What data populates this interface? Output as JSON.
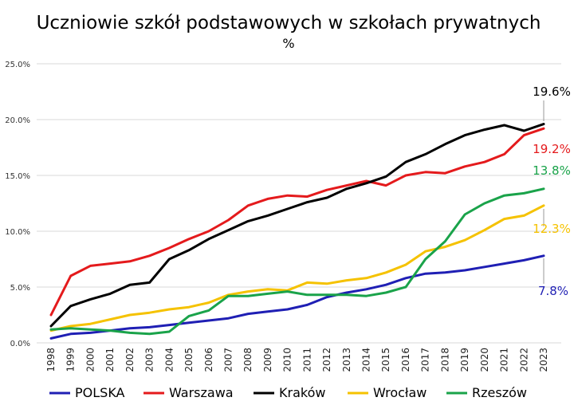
{
  "chart_data": {
    "type": "line",
    "title": "Uczniowie szkół podstawowych w szkołach prywatnych",
    "subtitle": "%",
    "x": [
      "1998",
      "1999",
      "2000",
      "2001",
      "2002",
      "2003",
      "2004",
      "2005",
      "2006",
      "2007",
      "2008",
      "2009",
      "2010",
      "2011",
      "2012",
      "2013",
      "2014",
      "2015",
      "2016",
      "2017",
      "2018",
      "2019",
      "2020",
      "2021",
      "2022",
      "2023"
    ],
    "ylim": [
      0,
      25
    ],
    "yticks": [
      0,
      5,
      10,
      15,
      20,
      25
    ],
    "ytick_labels": [
      "0.0%",
      "5.0%",
      "10.0%",
      "15.0%",
      "20.0%",
      "25.0%"
    ],
    "grid": true,
    "legend_position": "bottom",
    "series": [
      {
        "name": "POLSKA",
        "color": "#1f1fb4",
        "end_label": "7.8%",
        "values": [
          0.4,
          0.8,
          0.9,
          1.1,
          1.3,
          1.4,
          1.6,
          1.8,
          2.0,
          2.2,
          2.6,
          2.8,
          3.0,
          3.4,
          4.1,
          4.5,
          4.8,
          5.2,
          5.8,
          6.2,
          6.3,
          6.5,
          6.8,
          7.1,
          7.4,
          7.8
        ]
      },
      {
        "name": "Warszawa",
        "color": "#e41a1c",
        "end_label": "19.2%",
        "values": [
          2.5,
          6.0,
          6.9,
          7.1,
          7.3,
          7.8,
          8.5,
          9.3,
          10.0,
          11.0,
          12.3,
          12.9,
          13.2,
          13.1,
          13.7,
          14.1,
          14.5,
          14.1,
          15.0,
          15.3,
          15.2,
          15.8,
          16.2,
          16.9,
          18.6,
          19.2
        ]
      },
      {
        "name": "Kraków",
        "color": "#000000",
        "end_label": "19.6%",
        "values": [
          1.5,
          3.3,
          3.9,
          4.4,
          5.2,
          5.4,
          7.5,
          8.3,
          9.3,
          10.1,
          10.9,
          11.4,
          12.0,
          12.6,
          13.0,
          13.8,
          14.3,
          14.9,
          16.2,
          16.9,
          17.8,
          18.6,
          19.1,
          19.5,
          19.0,
          19.6
        ]
      },
      {
        "name": "Wrocław",
        "color": "#f5c200",
        "end_label": "12.3%",
        "values": [
          1.1,
          1.5,
          1.7,
          2.1,
          2.5,
          2.7,
          3.0,
          3.2,
          3.6,
          4.3,
          4.6,
          4.8,
          4.7,
          5.4,
          5.3,
          5.6,
          5.8,
          6.3,
          7.0,
          8.2,
          8.6,
          9.2,
          10.1,
          11.1,
          11.4,
          12.3
        ]
      },
      {
        "name": "Rzeszów",
        "color": "#1aa34a",
        "end_label": "13.8%",
        "values": [
          1.2,
          1.3,
          1.2,
          1.1,
          0.9,
          0.8,
          1.0,
          2.4,
          2.9,
          4.2,
          4.2,
          4.4,
          4.6,
          4.3,
          4.3,
          4.3,
          4.2,
          4.5,
          5.0,
          7.5,
          9.1,
          11.5,
          12.5,
          13.2,
          13.4,
          13.8
        ]
      }
    ]
  }
}
